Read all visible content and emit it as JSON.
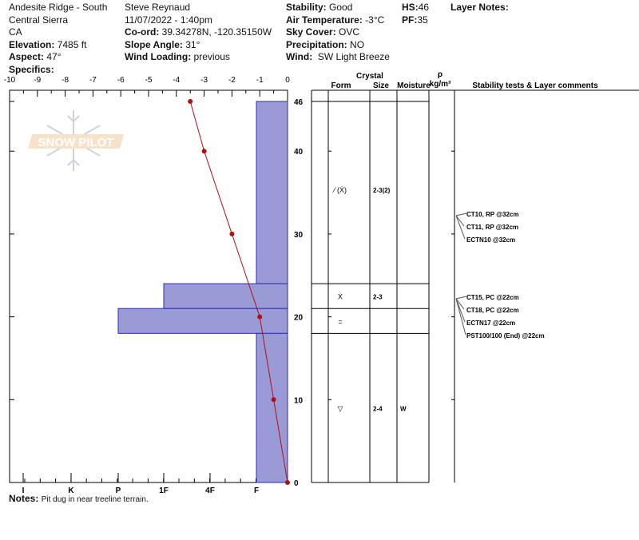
{
  "header": {
    "col1": {
      "location": "Andesite Ridge - South",
      "region": "Central Sierra",
      "state": "CA",
      "elevation_label": "Elevation:",
      "elevation": "7485 ft",
      "aspect_label": "Aspect:",
      "aspect": "47°",
      "specifics_label": "Specifics:"
    },
    "col2": {
      "observer": "Steve Reynaud",
      "datetime": "11/07/2022 - 1:40pm",
      "coord_label": "Co-ord:",
      "coord": "39.34278N, -120.35150W",
      "slope_label": "Slope Angle:",
      "slope": "31°",
      "wind_loading_label": "Wind Loading:",
      "wind_loading": "previous"
    },
    "col3": {
      "stability_label": "Stability:",
      "stability": "Good",
      "air_temp_label": "Air Temperature:",
      "air_temp": "-3°C",
      "sky_label": "Sky Cover:",
      "sky": "OVC",
      "precip_label": "Precipitation:",
      "precip": "NO",
      "wind_label": "Wind:",
      "wind": "SW Light Breeze"
    },
    "col4": {
      "hs_label": "HS:",
      "hs": "46",
      "pf_label": "PF:",
      "pf": "35"
    },
    "layer_notes_label": "Layer Notes:"
  },
  "notes": {
    "label": "Notes:",
    "text": "Pit dug in near treeline terrain."
  },
  "table_headers": {
    "crystal": "Crystal",
    "form": "Form",
    "size": "Size",
    "moisture": "Moisture",
    "rho": "ρ",
    "density_unit": "kg/m³",
    "comments": "Stability tests & Layer comments"
  },
  "watermark": "SNOW PILOT",
  "chart_data": {
    "type": "snow-profile",
    "temperature_axis": {
      "ticks": [
        "-10",
        "-9",
        "-8",
        "-7",
        "-6",
        "-5",
        "-4",
        "-3",
        "-2",
        "-1",
        "0"
      ],
      "range": [
        -10,
        0
      ]
    },
    "hardness_axis": {
      "ticks": [
        "I",
        "K",
        "P",
        "1F",
        "4F",
        "F"
      ]
    },
    "height_axis": {
      "ticks": [
        "0",
        "10",
        "20",
        "30",
        "40",
        "46"
      ],
      "range": [
        0,
        46
      ]
    },
    "temperature_profile": [
      {
        "height": 46,
        "temp": -3.5
      },
      {
        "height": 40,
        "temp": -3
      },
      {
        "height": 30,
        "temp": -2
      },
      {
        "height": 20,
        "temp": -1
      },
      {
        "height": 10,
        "temp": -0.5
      },
      {
        "height": 0,
        "temp": 0
      }
    ],
    "layers": [
      {
        "top": 46,
        "bottom": 24,
        "hardness": "F",
        "form": "⁄ (Ẋ)",
        "size": "2-3(2)",
        "moisture": ""
      },
      {
        "top": 24,
        "bottom": 21,
        "hardness": "1F",
        "form": "Ẋ",
        "size": "2-3",
        "moisture": ""
      },
      {
        "top": 21,
        "bottom": 18,
        "hardness": "P",
        "form": "=",
        "size": "",
        "moisture": ""
      },
      {
        "top": 18,
        "bottom": 0,
        "hardness": "F",
        "form": "▽",
        "size": "2-4",
        "moisture": "W"
      }
    ],
    "stability_tests": [
      {
        "height": 32,
        "items": [
          "CT10, RP @32cm",
          "CT11, RP @32cm",
          "ECTN10 @32cm"
        ]
      },
      {
        "height": 22,
        "items": [
          "CT15, PC @22cm",
          "CT18, PC @22cm",
          "ECTN17 @22cm",
          "PST100/100 (End) @22cm"
        ]
      }
    ],
    "colors": {
      "hardness_fill": "#9a9ad6",
      "hardness_stroke": "#2a2ac0",
      "temperature": "#b01010"
    }
  }
}
